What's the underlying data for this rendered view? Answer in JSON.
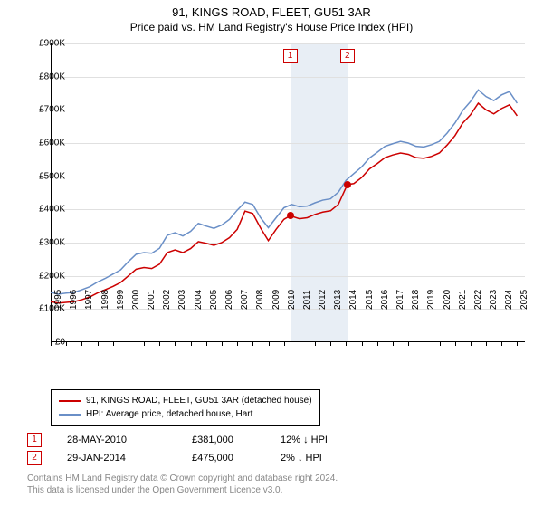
{
  "title": "91, KINGS ROAD, FLEET, GU51 3AR",
  "subtitle": "Price paid vs. HM Land Registry's House Price Index (HPI)",
  "chart": {
    "type": "line",
    "ylim": [
      0,
      900
    ],
    "yticks": [
      0,
      100,
      200,
      300,
      400,
      500,
      600,
      700,
      800,
      900
    ],
    "ytick_labels": [
      "£0",
      "£100K",
      "£200K",
      "£300K",
      "£400K",
      "£500K",
      "£600K",
      "£700K",
      "£800K",
      "£900K"
    ],
    "xlim": [
      1995,
      2025.5
    ],
    "xticks": [
      1995,
      1996,
      1997,
      1998,
      1999,
      2000,
      2001,
      2002,
      2003,
      2004,
      2005,
      2006,
      2007,
      2008,
      2009,
      2010,
      2011,
      2012,
      2013,
      2014,
      2015,
      2016,
      2017,
      2018,
      2019,
      2020,
      2021,
      2022,
      2023,
      2024,
      2025
    ],
    "grid_color": "#e0e0e0",
    "background_color": "#ffffff",
    "shaded_band": {
      "from": 2010.4,
      "to": 2014.08,
      "color": "#e8eef5"
    },
    "vlines": [
      {
        "x": 2010.4,
        "color": "#cc0000",
        "label": "1"
      },
      {
        "x": 2014.08,
        "color": "#cc0000",
        "label": "2"
      }
    ],
    "series": [
      {
        "name": "HPI: Average price, detached house, Hart",
        "color": "#6a8fc7",
        "width": 1.5,
        "data": [
          [
            1995,
            150
          ],
          [
            1995.5,
            145
          ],
          [
            1996,
            148
          ],
          [
            1996.5,
            150
          ],
          [
            1997,
            158
          ],
          [
            1997.5,
            167
          ],
          [
            1998,
            181
          ],
          [
            1998.5,
            192
          ],
          [
            1999,
            205
          ],
          [
            1999.5,
            218
          ],
          [
            2000,
            243
          ],
          [
            2000.5,
            265
          ],
          [
            2001,
            270
          ],
          [
            2001.5,
            268
          ],
          [
            2002,
            283
          ],
          [
            2002.5,
            322
          ],
          [
            2003,
            330
          ],
          [
            2003.5,
            320
          ],
          [
            2004,
            334
          ],
          [
            2004.5,
            358
          ],
          [
            2005,
            350
          ],
          [
            2005.5,
            343
          ],
          [
            2006,
            353
          ],
          [
            2006.5,
            370
          ],
          [
            2007,
            398
          ],
          [
            2007.5,
            422
          ],
          [
            2008,
            415
          ],
          [
            2008.5,
            375
          ],
          [
            2009,
            345
          ],
          [
            2009.5,
            375
          ],
          [
            2010,
            405
          ],
          [
            2010.5,
            415
          ],
          [
            2011,
            408
          ],
          [
            2011.5,
            410
          ],
          [
            2012,
            420
          ],
          [
            2012.5,
            428
          ],
          [
            2013,
            432
          ],
          [
            2013.5,
            452
          ],
          [
            2014,
            488
          ],
          [
            2014.5,
            508
          ],
          [
            2015,
            528
          ],
          [
            2015.5,
            555
          ],
          [
            2016,
            572
          ],
          [
            2016.5,
            590
          ],
          [
            2017,
            598
          ],
          [
            2017.5,
            605
          ],
          [
            2018,
            600
          ],
          [
            2018.5,
            590
          ],
          [
            2019,
            588
          ],
          [
            2019.5,
            595
          ],
          [
            2020,
            605
          ],
          [
            2020.5,
            630
          ],
          [
            2021,
            660
          ],
          [
            2021.5,
            698
          ],
          [
            2022,
            725
          ],
          [
            2022.5,
            760
          ],
          [
            2023,
            740
          ],
          [
            2023.5,
            728
          ],
          [
            2024,
            745
          ],
          [
            2024.5,
            755
          ],
          [
            2025,
            720
          ]
        ]
      },
      {
        "name": "91, KINGS ROAD, FLEET, GU51 3AR (detached house)",
        "color": "#cc0000",
        "width": 1.5,
        "data": [
          [
            1995,
            122
          ],
          [
            1995.5,
            118
          ],
          [
            1996,
            120
          ],
          [
            1996.5,
            122
          ],
          [
            1997,
            128
          ],
          [
            1997.5,
            136
          ],
          [
            1998,
            148
          ],
          [
            1998.5,
            158
          ],
          [
            1999,
            168
          ],
          [
            1999.5,
            180
          ],
          [
            2000,
            200
          ],
          [
            2000.5,
            220
          ],
          [
            2001,
            225
          ],
          [
            2001.5,
            222
          ],
          [
            2002,
            235
          ],
          [
            2002.5,
            270
          ],
          [
            2003,
            278
          ],
          [
            2003.5,
            270
          ],
          [
            2004,
            282
          ],
          [
            2004.5,
            303
          ],
          [
            2005,
            298
          ],
          [
            2005.5,
            292
          ],
          [
            2006,
            300
          ],
          [
            2006.5,
            315
          ],
          [
            2007,
            340
          ],
          [
            2007.5,
            395
          ],
          [
            2008,
            388
          ],
          [
            2008.5,
            344
          ],
          [
            2009,
            306
          ],
          [
            2009.5,
            340
          ],
          [
            2010,
            370
          ],
          [
            2010.4,
            381
          ],
          [
            2011,
            372
          ],
          [
            2011.5,
            375
          ],
          [
            2012,
            385
          ],
          [
            2012.5,
            392
          ],
          [
            2013,
            396
          ],
          [
            2013.5,
            415
          ],
          [
            2014.08,
            475
          ],
          [
            2014.5,
            478
          ],
          [
            2015,
            496
          ],
          [
            2015.5,
            522
          ],
          [
            2016,
            538
          ],
          [
            2016.5,
            556
          ],
          [
            2017,
            564
          ],
          [
            2017.5,
            570
          ],
          [
            2018,
            566
          ],
          [
            2018.5,
            556
          ],
          [
            2019,
            554
          ],
          [
            2019.5,
            560
          ],
          [
            2020,
            570
          ],
          [
            2020.5,
            594
          ],
          [
            2021,
            622
          ],
          [
            2021.5,
            660
          ],
          [
            2022,
            685
          ],
          [
            2022.5,
            720
          ],
          [
            2023,
            700
          ],
          [
            2023.5,
            688
          ],
          [
            2024,
            704
          ],
          [
            2024.5,
            715
          ],
          [
            2025,
            682
          ]
        ]
      }
    ],
    "markers": [
      {
        "x": 2010.4,
        "y": 381,
        "color": "#cc0000"
      },
      {
        "x": 2014.08,
        "y": 475,
        "color": "#cc0000"
      }
    ]
  },
  "legend": {
    "items": [
      {
        "color": "#cc0000",
        "label": "91, KINGS ROAD, FLEET, GU51 3AR (detached house)"
      },
      {
        "color": "#6a8fc7",
        "label": "HPI: Average price, detached house, Hart"
      }
    ]
  },
  "events": [
    {
      "n": "1",
      "color": "#cc0000",
      "date": "28-MAY-2010",
      "price": "£381,000",
      "delta": "12% ↓ HPI"
    },
    {
      "n": "2",
      "color": "#cc0000",
      "date": "29-JAN-2014",
      "price": "£475,000",
      "delta": "2% ↓ HPI"
    }
  ],
  "attribution": {
    "line1": "Contains HM Land Registry data © Crown copyright and database right 2024.",
    "line2": "This data is licensed under the Open Government Licence v3.0."
  }
}
